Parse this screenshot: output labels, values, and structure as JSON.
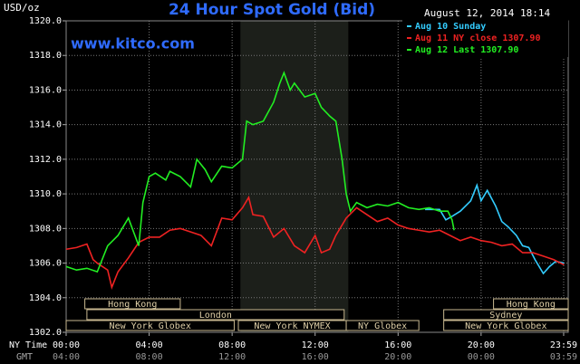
{
  "chart_data": {
    "type": "line",
    "title": "24 Hour Spot Gold (Bid)",
    "subtitle": "www.kitco.com",
    "ylabel": "USD/oz",
    "timestamp": "August 12, 2014 18:14",
    "row_labels": [
      "NY Time",
      "GMT"
    ],
    "xlim": [
      0,
      24.2
    ],
    "ylim": [
      1302,
      1320
    ],
    "xticks": [
      {
        "value": 0,
        "label": "00:00"
      },
      {
        "value": 4,
        "label": "04:00"
      },
      {
        "value": 8,
        "label": "08:00"
      },
      {
        "value": 12,
        "label": "12:00"
      },
      {
        "value": 16,
        "label": "16:00"
      },
      {
        "value": 20,
        "label": "20:00"
      },
      {
        "value": 23.98,
        "label": "23:59"
      }
    ],
    "gmt_labels": [
      "04:00",
      "08:00",
      "12:00",
      "16:00",
      "20:00",
      "00:00",
      "03:59"
    ],
    "yticks": [
      {
        "value": 1302,
        "label": "1302.0"
      },
      {
        "value": 1304,
        "label": "1304.0"
      },
      {
        "value": 1306,
        "label": "1306.0"
      },
      {
        "value": 1308,
        "label": "1308.0"
      },
      {
        "value": 1310,
        "label": "1310.0"
      },
      {
        "value": 1312,
        "label": "1312.0"
      },
      {
        "value": 1314,
        "label": "1314.0"
      },
      {
        "value": 1316,
        "label": "1316.0"
      },
      {
        "value": 1318,
        "label": "1318.0"
      },
      {
        "value": 1320,
        "label": "1320.0"
      }
    ],
    "grid": true,
    "highlight_range": [
      8.4,
      13.6
    ],
    "sessions": [
      {
        "label": "Hong Kong",
        "row": 0,
        "start": 0.9,
        "end": 5.5
      },
      {
        "label": "Hong Kong",
        "row": 0,
        "start": 20.6,
        "end": 24.2
      },
      {
        "label": "London",
        "row": 1,
        "start": 1.0,
        "end": 13.4
      },
      {
        "label": "Sydney",
        "row": 1,
        "start": 18.2,
        "end": 24.2
      },
      {
        "label": "New York Globex",
        "row": 2,
        "start": 0,
        "end": 8.1
      },
      {
        "label": "New York NYMEX",
        "row": 2,
        "start": 8.3,
        "end": 13.5
      },
      {
        "label": "NY Globex",
        "row": 2,
        "start": 13.5,
        "end": 17.0
      },
      {
        "label": "New York Globex",
        "row": 2,
        "start": 18.2,
        "end": 24.2
      }
    ],
    "series": [
      {
        "name": "Aug 10 Sunday",
        "color": "#33ccff",
        "x": [
          17.3,
          18.0,
          18.3,
          18.6,
          19.0,
          19.5,
          19.8,
          20.0,
          20.3,
          20.7,
          21.0,
          21.3,
          21.7,
          22.0,
          22.3,
          22.6,
          23.0,
          23.3,
          23.6,
          24.0
        ],
        "values": [
          1309.1,
          1309.1,
          1308.5,
          1308.7,
          1309.0,
          1309.6,
          1310.5,
          1309.6,
          1310.2,
          1309.3,
          1308.4,
          1308.1,
          1307.6,
          1307.0,
          1306.9,
          1306.2,
          1305.4,
          1305.8,
          1306.1,
          1306.0
        ]
      },
      {
        "name": "Aug 11 NY close 1307.90",
        "color": "#ee2222",
        "x": [
          0,
          0.5,
          1.0,
          1.3,
          1.5,
          2.0,
          2.2,
          2.5,
          3.0,
          3.5,
          4.0,
          4.5,
          5.0,
          5.5,
          6.0,
          6.5,
          7.0,
          7.5,
          8.0,
          8.5,
          8.8,
          9.0,
          9.5,
          10.0,
          10.5,
          11.0,
          11.5,
          12.0,
          12.3,
          12.7,
          13.0,
          13.5,
          14.0,
          14.5,
          15.0,
          15.5,
          16.0,
          16.5,
          17.0,
          17.5,
          18.0,
          18.5,
          19.0,
          19.5,
          20.0,
          20.5,
          21.0,
          21.5,
          22.0,
          22.5,
          23.0,
          23.5,
          24.0
        ],
        "values": [
          1306.8,
          1306.9,
          1307.1,
          1306.2,
          1306.0,
          1305.6,
          1304.6,
          1305.5,
          1306.3,
          1307.2,
          1307.5,
          1307.5,
          1307.9,
          1308.0,
          1307.8,
          1307.6,
          1307.0,
          1308.6,
          1308.5,
          1309.2,
          1309.8,
          1308.8,
          1308.7,
          1307.5,
          1308.0,
          1307.0,
          1306.6,
          1307.6,
          1306.6,
          1306.8,
          1307.6,
          1308.6,
          1309.2,
          1308.8,
          1308.4,
          1308.6,
          1308.2,
          1308.0,
          1307.9,
          1307.8,
          1307.9,
          1307.6,
          1307.3,
          1307.5,
          1307.3,
          1307.2,
          1307.0,
          1307.1,
          1306.6,
          1306.6,
          1306.4,
          1306.2,
          1305.9
        ]
      },
      {
        "name": "Aug 12 Last 1307.90",
        "color": "#22ee22",
        "x": [
          0,
          0.5,
          1.0,
          1.5,
          2.0,
          2.5,
          3.0,
          3.5,
          3.7,
          4.0,
          4.3,
          4.8,
          5.0,
          5.5,
          6.0,
          6.3,
          6.7,
          7.0,
          7.5,
          8.0,
          8.5,
          8.7,
          9.0,
          9.5,
          10.0,
          10.3,
          10.5,
          10.8,
          11.0,
          11.5,
          12.0,
          12.3,
          12.7,
          13.0,
          13.3,
          13.5,
          13.7,
          14.0,
          14.5,
          15.0,
          15.5,
          16.0,
          16.5,
          17.0,
          17.5,
          18.0,
          18.4,
          18.6,
          18.7
        ],
        "values": [
          1305.8,
          1305.6,
          1305.7,
          1305.5,
          1307.0,
          1307.6,
          1308.6,
          1307.0,
          1309.5,
          1311.0,
          1311.2,
          1310.8,
          1311.3,
          1311.0,
          1310.4,
          1312.0,
          1311.4,
          1310.7,
          1311.6,
          1311.5,
          1312.0,
          1314.2,
          1314.0,
          1314.2,
          1315.3,
          1316.4,
          1317.0,
          1316.0,
          1316.4,
          1315.6,
          1315.8,
          1315.0,
          1314.5,
          1314.2,
          1312.0,
          1310.0,
          1309.0,
          1309.5,
          1309.2,
          1309.4,
          1309.3,
          1309.5,
          1309.2,
          1309.1,
          1309.2,
          1309.0,
          1309.0,
          1308.5,
          1307.9
        ]
      }
    ]
  }
}
